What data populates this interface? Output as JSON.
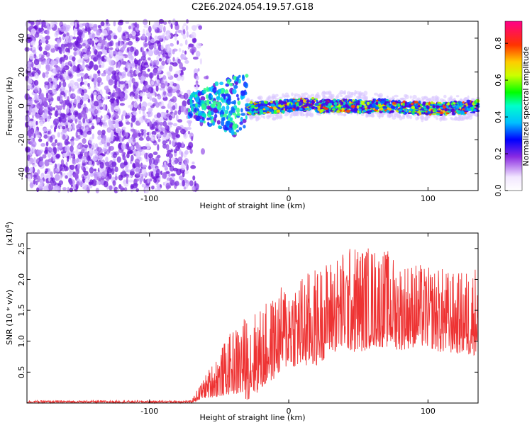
{
  "title": "C2E6.2024.054.19.57.G18",
  "chart_data": [
    {
      "type": "heatmap",
      "xlabel": "Height of straight line (km)",
      "ylabel": "Frequency (Hz)",
      "xlim": [
        -188,
        136
      ],
      "ylim": [
        -50,
        50
      ],
      "xticks": [
        -100,
        0,
        100
      ],
      "yticks": [
        -40,
        -20,
        0,
        20,
        40
      ],
      "colorbar": {
        "label": "Normalized spectral amplitude",
        "range": [
          0.0,
          0.92
        ],
        "ticks": [
          0.0,
          0.2,
          0.4,
          0.6,
          0.8
        ],
        "colormap": "rainbow (white-purple-blue-cyan-green-yellow-orange-red-magenta)"
      },
      "description_features": {
        "noise_region_x": [
          -188,
          -70
        ],
        "transition_region_x": [
          -70,
          -30
        ],
        "signal_band_x": [
          -30,
          136
        ],
        "signal_band_center_frequency": 0
      }
    },
    {
      "type": "line",
      "xlabel": "Height of straight line (km)",
      "ylabel": "SNR (10 * v/v)",
      "yscale_label": "(x10^4)",
      "xlim": [
        -188,
        136
      ],
      "ylim": [
        0,
        2.75
      ],
      "xticks": [
        -100,
        0,
        100
      ],
      "yticks": [
        0.5,
        1.0,
        1.5,
        2.0,
        2.5
      ],
      "color": "#ee3333",
      "envelope": {
        "x": [
          -188,
          -70,
          -60,
          -50,
          -40,
          -30,
          -20,
          -10,
          0,
          10,
          20,
          30,
          40,
          50,
          60,
          70,
          80,
          90,
          100,
          110,
          120,
          130,
          136
        ],
        "y_low": [
          0.0,
          0.0,
          0.08,
          0.1,
          0.15,
          0.05,
          0.2,
          0.4,
          0.6,
          0.55,
          0.6,
          0.8,
          0.85,
          0.8,
          0.9,
          0.9,
          0.85,
          0.9,
          0.9,
          0.8,
          0.8,
          0.75,
          0.8
        ],
        "y_high": [
          0.04,
          0.04,
          0.45,
          0.85,
          1.2,
          1.45,
          1.55,
          1.75,
          2.05,
          2.1,
          2.2,
          2.35,
          2.5,
          2.6,
          2.55,
          2.5,
          2.3,
          2.3,
          2.2,
          2.2,
          2.1,
          2.2,
          2.3
        ]
      }
    }
  ]
}
